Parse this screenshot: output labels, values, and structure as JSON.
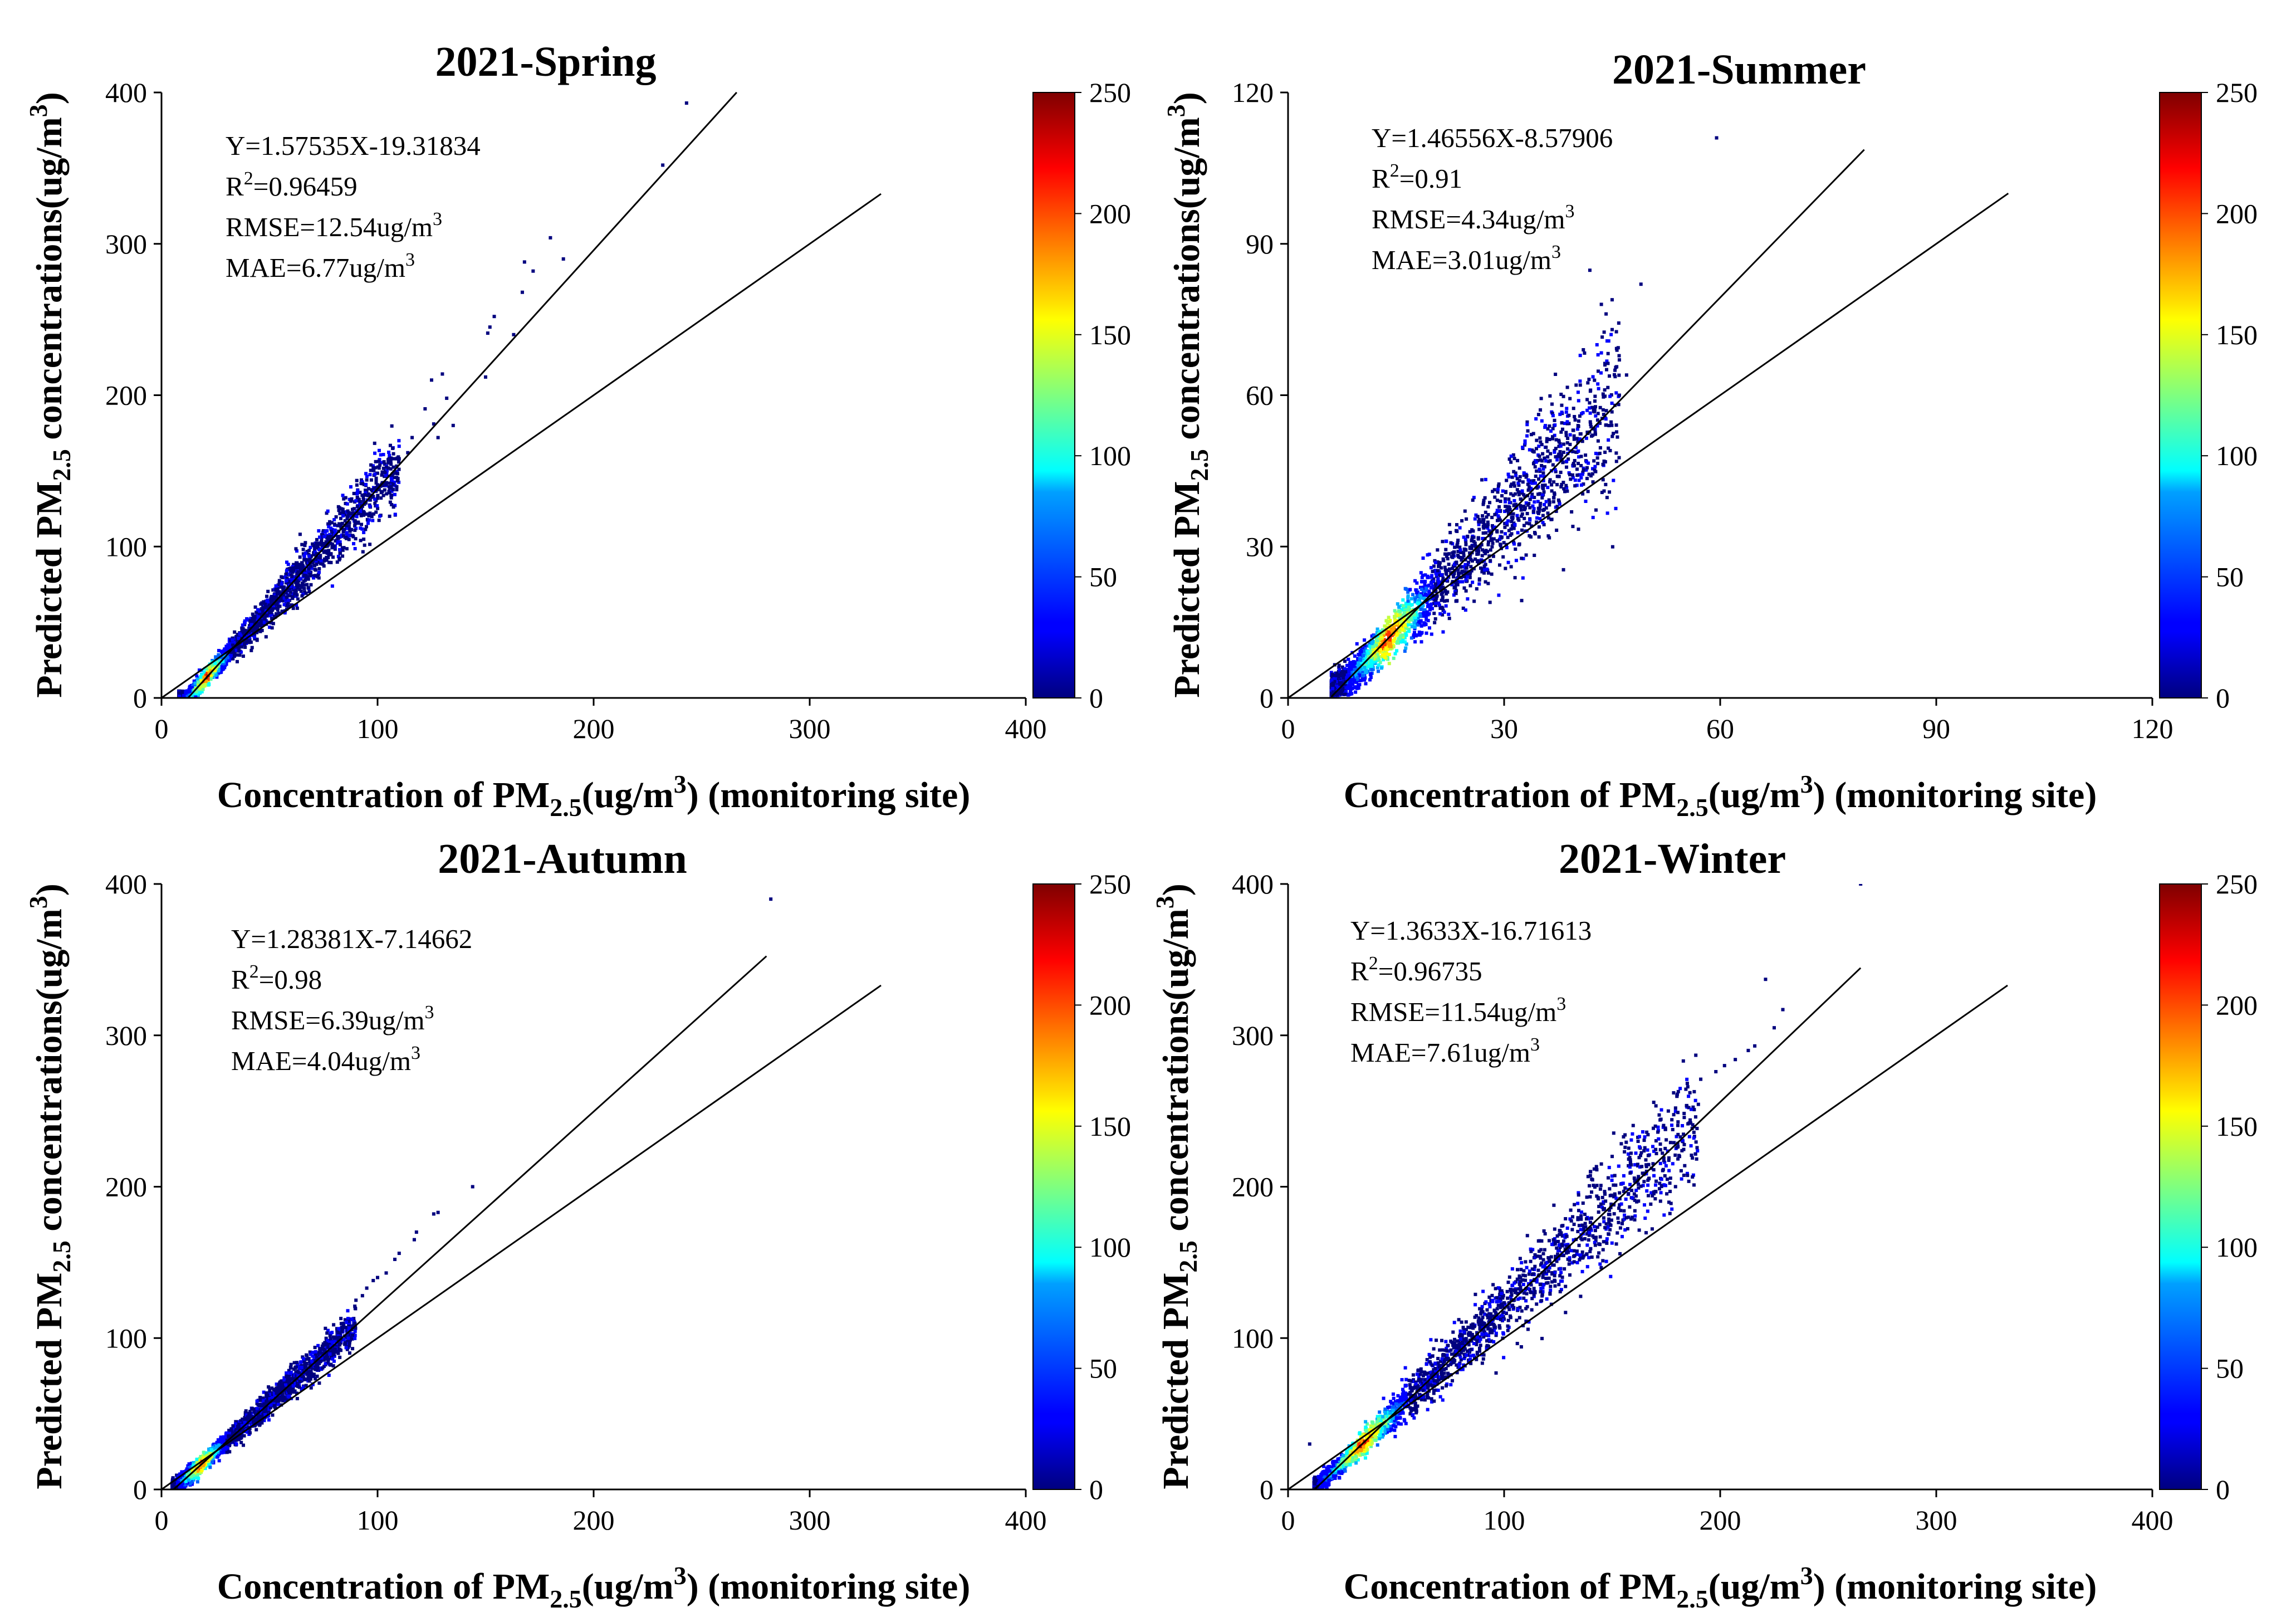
{
  "chart_data": [
    {
      "type": "scatter",
      "title": "2021-Spring",
      "xlabel": {
        "pre": "Concentration of PM",
        "sub": "2.5",
        "mid": "(ug/m",
        "sup": "3",
        "post": ") (monitoring site)"
      },
      "ylabel": {
        "pre": "Predicted PM",
        "sub": "2.5",
        "mid": " concentrations(ug/m",
        "sup": "3",
        "post": ")"
      },
      "xlim": [
        0,
        400
      ],
      "ylim": [
        0,
        400
      ],
      "xticks": [
        0,
        100,
        200,
        300,
        400
      ],
      "yticks": [
        0,
        100,
        200,
        300,
        400
      ],
      "fit": {
        "slope": 1.57535,
        "intercept": -19.31834,
        "x_range": [
          12.3,
          266.2
        ]
      },
      "reference": {
        "x_range": [
          0,
          333
        ]
      },
      "stats": {
        "equation": "Y=1.57535X-19.31834",
        "r2_value": "=0.96459",
        "rmse_value": "RMSE=12.54ug/m",
        "mae_value": "MAE=6.77ug/m"
      },
      "density": {
        "x_range": [
          8,
          110
        ],
        "cloud_sigma": 0.07,
        "core_x": [
          10,
          32
        ]
      },
      "outliers": [
        [
          243,
          393
        ],
        [
          232,
          352
        ],
        [
          186,
          290
        ],
        [
          180,
          304
        ],
        [
          172,
          282
        ],
        [
          168,
          288
        ],
        [
          167,
          268
        ],
        [
          163,
          240
        ],
        [
          154,
          252
        ],
        [
          152,
          245
        ],
        [
          151,
          241
        ],
        [
          150,
          212
        ],
        [
          130,
          214
        ],
        [
          125,
          210
        ],
        [
          132,
          198
        ],
        [
          122,
          191
        ],
        [
          126,
          181
        ],
        [
          135,
          180
        ],
        [
          128,
          172
        ],
        [
          116,
          172
        ],
        [
          114,
          162
        ],
        [
          110,
          158
        ],
        [
          103,
          156
        ],
        [
          98,
          152
        ],
        [
          95,
          144
        ],
        [
          107,
          148
        ]
      ],
      "colorbar": {
        "range": [
          0,
          250
        ],
        "ticks": [
          0,
          50,
          100,
          150,
          200,
          250
        ]
      }
    },
    {
      "type": "scatter",
      "title": "2021-Summer",
      "xlabel": {
        "pre": "Concentration of PM",
        "sub": "2.5",
        "mid": "(ug/m",
        "sup": "3",
        "post": ") (monitoring site)"
      },
      "ylabel": {
        "pre": "Predicted PM",
        "sub": "2.5",
        "mid": " concentrations(ug/m",
        "sup": "3",
        "post": ")"
      },
      "xlim": [
        0,
        120
      ],
      "ylim": [
        0,
        120
      ],
      "xticks": [
        0,
        30,
        60,
        90,
        120
      ],
      "yticks": [
        0,
        30,
        60,
        90,
        120
      ],
      "fit": {
        "slope": 1.46556,
        "intercept": -8.57906,
        "x_range": [
          6,
          80
        ]
      },
      "reference": {
        "x_range": [
          0,
          100
        ]
      },
      "stats": {
        "equation": "Y=1.46556X-8.57906",
        "r2_value": "=0.91",
        "rmse_value": "RMSE=4.34ug/m",
        "mae_value": "MAE=3.01ug/m"
      },
      "density": {
        "x_range": [
          6,
          46
        ],
        "cloud_sigma": 0.14,
        "core_x": [
          8,
          20
        ]
      },
      "outliers": [
        [
          59.5,
          111
        ],
        [
          49,
          82
        ],
        [
          43.5,
          78
        ],
        [
          45,
          73
        ],
        [
          46,
          67
        ],
        [
          44,
          66
        ],
        [
          41,
          69
        ],
        [
          47,
          64
        ],
        [
          40,
          62
        ],
        [
          42,
          61
        ],
        [
          38,
          58
        ],
        [
          46,
          60
        ],
        [
          39,
          56
        ],
        [
          37,
          55
        ]
      ],
      "colorbar": {
        "range": [
          0,
          250
        ],
        "ticks": [
          0,
          50,
          100,
          150,
          200,
          250
        ]
      }
    },
    {
      "type": "scatter",
      "title": "2021-Autumn",
      "xlabel": {
        "pre": "Concentration of PM",
        "sub": "2.5",
        "mid": "(ug/m",
        "sup": "3",
        "post": ") (monitoring site)"
      },
      "ylabel": {
        "pre": "Predicted PM",
        "sub": "2.5",
        "mid": " concentrations(ug/m",
        "sup": "3",
        "post": ")"
      },
      "xlim": [
        0,
        400
      ],
      "ylim": [
        0,
        400
      ],
      "xticks": [
        0,
        100,
        200,
        300,
        400
      ],
      "yticks": [
        0,
        100,
        200,
        300,
        400
      ],
      "fit": {
        "slope": 1.28381,
        "intercept": -7.14662,
        "x_range": [
          5.6,
          280
        ]
      },
      "reference": {
        "x_range": [
          0,
          333
        ]
      },
      "stats": {
        "equation": "Y=1.28381X-7.14662",
        "r2_value": "=0.98",
        "rmse_value": "RMSE=6.39ug/m",
        "mae_value": "MAE=4.04ug/m"
      },
      "density": {
        "x_range": [
          5,
          90
        ],
        "cloud_sigma": 0.045,
        "core_x": [
          7,
          30
        ]
      },
      "outliers": [
        [
          282,
          390
        ],
        [
          144,
          200
        ],
        [
          128,
          183
        ],
        [
          126,
          182
        ],
        [
          118,
          170
        ],
        [
          117,
          165
        ],
        [
          110,
          156
        ],
        [
          108,
          152
        ],
        [
          104,
          143
        ],
        [
          100,
          140
        ],
        [
          98,
          138
        ],
        [
          95,
          133
        ],
        [
          93,
          128
        ],
        [
          90,
          125
        ]
      ],
      "colorbar": {
        "range": [
          0,
          250
        ],
        "ticks": [
          0,
          50,
          100,
          150,
          200,
          250
        ]
      }
    },
    {
      "type": "scatter",
      "title": "2021-Winter",
      "xlabel": {
        "pre": "Concentration of PM",
        "sub": "2.5",
        "mid": "(ug/m",
        "sup": "3",
        "post": ") (monitoring site)"
      },
      "ylabel": {
        "pre": "Predicted PM",
        "sub": "2.5",
        "mid": " concentrations(ug/m",
        "sup": "3",
        "post": ")"
      },
      "xlim": [
        0,
        400
      ],
      "ylim": [
        0,
        400
      ],
      "xticks": [
        0,
        100,
        200,
        300,
        400
      ],
      "yticks": [
        0,
        100,
        200,
        300,
        400
      ],
      "fit": {
        "slope": 1.3633,
        "intercept": -16.71613,
        "x_range": [
          12.3,
          265
        ]
      },
      "reference": {
        "x_range": [
          0,
          333
        ]
      },
      "stats": {
        "equation": "Y=1.3633X-16.71613",
        "r2_value": "=0.96735",
        "rmse_value": "RMSE=11.54ug/m",
        "mae_value": "MAE=7.61ug/m"
      },
      "density": {
        "x_range": [
          12,
          190
        ],
        "cloud_sigma": 0.08,
        "core_x": [
          14,
          55
        ]
      },
      "outliers": [
        [
          265,
          400
        ],
        [
          221,
          337
        ],
        [
          229,
          317
        ],
        [
          225,
          305
        ],
        [
          216,
          293
        ],
        [
          213,
          290
        ],
        [
          207,
          284
        ],
        [
          202,
          280
        ],
        [
          198,
          276
        ],
        [
          191,
          271
        ],
        [
          185,
          266
        ],
        [
          180,
          260
        ],
        [
          176,
          250
        ],
        [
          170,
          240
        ],
        [
          166,
          236
        ],
        [
          162,
          230
        ],
        [
          156,
          226
        ],
        [
          150,
          220
        ],
        [
          145,
          215
        ],
        [
          140,
          210
        ],
        [
          10,
          30
        ]
      ],
      "colorbar": {
        "range": [
          0,
          250
        ],
        "ticks": [
          0,
          50,
          100,
          150,
          200,
          250
        ]
      }
    }
  ]
}
